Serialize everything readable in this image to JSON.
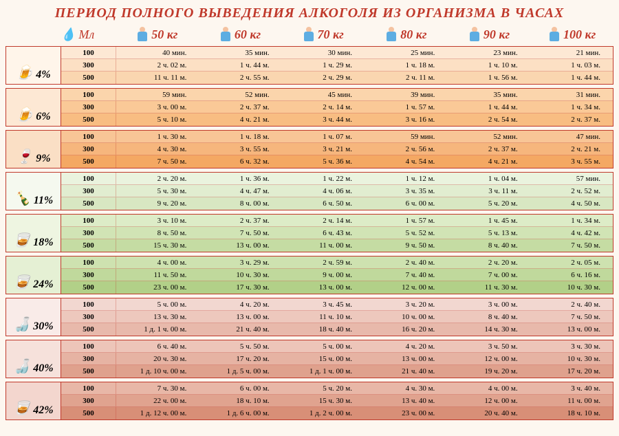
{
  "title": "ПЕРИОД ПОЛНОГО ВЫВЕДЕНИЯ АЛКОГОЛЯ ИЗ ОРГАНИЗМА В ЧАСАХ",
  "title_color": "#c0392b",
  "ml_label": "Мл",
  "ml_color": "#c0392b",
  "weights": [
    "50 кг",
    "60 кг",
    "70 кг",
    "80 кг",
    "90 кг",
    "100 кг"
  ],
  "weight_colors": [
    "#c0392b",
    "#c0392b",
    "#c0392b",
    "#c0392b",
    "#c0392b",
    "#c0392b"
  ],
  "ml_amounts": [
    "100",
    "300",
    "500"
  ],
  "drinks": [
    {
      "percent": "4%",
      "icon": "🍺",
      "label_bg": "#fff5ea",
      "row_bgs": [
        "#fde8d4",
        "#fce0c4",
        "#fad6b0"
      ],
      "rows": [
        [
          "40 мин.",
          "35 мин.",
          "30 мин.",
          "25 мин.",
          "23 мин.",
          "21 мин."
        ],
        [
          "2 ч. 02 м.",
          "1 ч. 44 м.",
          "1 ч. 29 м.",
          "1 ч. 18 м.",
          "1 ч. 10 м.",
          "1 ч. 03 м."
        ],
        [
          "11 ч. 11 м.",
          "2 ч. 55 м.",
          "2 ч. 29 м.",
          "2 ч. 11 м.",
          "1 ч. 56 м.",
          "1 ч. 44 м."
        ]
      ]
    },
    {
      "percent": "6%",
      "icon": "🍺",
      "label_bg": "#fde8d4",
      "row_bgs": [
        "#fbd5ac",
        "#fac997",
        "#f8bd82"
      ],
      "rows": [
        [
          "59 мин.",
          "52 мин.",
          "45 мин.",
          "39 мин.",
          "35 мин.",
          "31 мин."
        ],
        [
          "3 ч. 00 м.",
          "2 ч. 37 м.",
          "2 ч. 14 м.",
          "1 ч. 57 м.",
          "1 ч. 44 м.",
          "1 ч. 34 м."
        ],
        [
          "5 ч. 10 м.",
          "4 ч. 21 м.",
          "3 ч. 44 м.",
          "3 ч. 16 м.",
          "2 ч. 54 м.",
          "2 ч. 37 м."
        ]
      ]
    },
    {
      "percent": "9%",
      "icon": "🍷",
      "label_bg": "#fadfc5",
      "row_bgs": [
        "#f8c596",
        "#f6b67d",
        "#f4a863"
      ],
      "rows": [
        [
          "1 ч. 30 м.",
          "1 ч. 18 м.",
          "1 ч. 07 м.",
          "59 мин.",
          "52 мин.",
          "47 мин."
        ],
        [
          "4 ч. 30 м.",
          "3 ч. 55 м.",
          "3 ч. 21 м.",
          "2 ч. 56 м.",
          "2 ч. 37 м.",
          "2 ч. 21 м."
        ],
        [
          "7 ч. 50 м.",
          "6 ч. 32 м.",
          "5 ч. 36 м.",
          "4 ч. 54 м.",
          "4 ч. 21 м.",
          "3 ч. 55 м."
        ]
      ]
    },
    {
      "percent": "11%",
      "icon": "🍾",
      "label_bg": "#f5f9ef",
      "row_bgs": [
        "#eaf3de",
        "#e1edd0",
        "#d8e7c2"
      ],
      "rows": [
        [
          "2 ч. 20 м.",
          "1 ч. 36 м.",
          "1 ч. 22 м.",
          "1 ч. 12 м.",
          "1 ч. 04 м.",
          "57 мин."
        ],
        [
          "5 ч. 30 м.",
          "4 ч. 47 м.",
          "4 ч. 06 м.",
          "3 ч. 35 м.",
          "3 ч. 11 м.",
          "2 ч. 52 м."
        ],
        [
          "9 ч. 20 м.",
          "8 ч. 00 м.",
          "6 ч. 50 м.",
          "6 ч. 00 м.",
          "5 ч. 20 м.",
          "4 ч. 50 м."
        ]
      ]
    },
    {
      "percent": "18%",
      "icon": "🥃",
      "label_bg": "#eef5e1",
      "row_bgs": [
        "#ddecc7",
        "#d1e4b5",
        "#c5dca3"
      ],
      "rows": [
        [
          "3 ч. 10 м.",
          "2 ч. 37 м.",
          "2 ч. 14 м.",
          "1 ч. 57 м.",
          "1 ч. 45 м.",
          "1 ч. 34 м."
        ],
        [
          "8 ч. 50 м.",
          "7 ч. 50 м.",
          "6 ч. 43 м.",
          "5 ч. 52 м.",
          "5 ч. 13 м.",
          "4 ч. 42 м."
        ],
        [
          "15 ч. 30 м.",
          "13 ч. 00 м.",
          "11 ч. 00 м.",
          "9 ч. 50 м.",
          "8 ч. 40 м.",
          "7 ч. 50 м."
        ]
      ]
    },
    {
      "percent": "24%",
      "icon": "🥃",
      "label_bg": "#e5f0d4",
      "row_bgs": [
        "#cee2b0",
        "#c0d99c",
        "#b2d088"
      ],
      "rows": [
        [
          "4 ч. 00 м.",
          "3 ч. 29 м.",
          "2 ч. 59 м.",
          "2 ч. 40 м.",
          "2 ч. 20 м.",
          "2 ч. 05 м."
        ],
        [
          "11 ч. 50 м.",
          "10 ч. 30 м.",
          "9 ч. 00 м.",
          "7 ч. 40 м.",
          "7 ч. 00 м.",
          "6 ч. 16 м."
        ],
        [
          "23 ч. 00 м.",
          "17 ч. 30 м.",
          "13 ч. 00 м.",
          "12 ч. 00 м.",
          "11 ч. 30 м.",
          "10 ч. 30 м."
        ]
      ]
    },
    {
      "percent": "30%",
      "icon": "🍶",
      "label_bg": "#f9ebe8",
      "row_bgs": [
        "#f2d7d0",
        "#edc8bd",
        "#e8b9ab"
      ],
      "rows": [
        [
          "5 ч. 00 м.",
          "4 ч. 20 м.",
          "3 ч. 45 м.",
          "3 ч. 20 м.",
          "3 ч. 00 м.",
          "2 ч. 40 м."
        ],
        [
          "13 ч. 30 м.",
          "13 ч. 00 м.",
          "11 ч. 10 м.",
          "10 ч. 00 м.",
          "8 ч. 40 м.",
          "7 ч. 50 м."
        ],
        [
          "1 д. 1 ч. 00 м.",
          "21 ч. 40 м.",
          "18 ч. 40 м.",
          "16 ч. 20 м.",
          "14 ч. 30 м.",
          "13 ч. 00 м."
        ]
      ]
    },
    {
      "percent": "40%",
      "icon": "🍶",
      "label_bg": "#f6e1db",
      "row_bgs": [
        "#edc5b9",
        "#e6b3a3",
        "#dfa18d"
      ],
      "rows": [
        [
          "6 ч. 40 м.",
          "5 ч. 50 м.",
          "5 ч. 00 м.",
          "4 ч. 20 м.",
          "3 ч. 50 м.",
          "3 ч. 30 м."
        ],
        [
          "20 ч. 30 м.",
          "17 ч. 20 м.",
          "15 ч. 00 м.",
          "13 ч. 00 м.",
          "12 ч. 00 м.",
          "10 ч. 30 м."
        ],
        [
          "1 д. 10 ч. 00 м.",
          "1 д. 5 ч. 00 м.",
          "1 д. 1 ч. 00 м.",
          "21 ч. 40 м.",
          "19 ч. 20 м.",
          "17 ч. 20 м."
        ]
      ]
    },
    {
      "percent": "42%",
      "icon": "🥃",
      "label_bg": "#f3d6ce",
      "row_bgs": [
        "#e8b7a7",
        "#e0a38f",
        "#d88f77"
      ],
      "rows": [
        [
          "7 ч. 30 м.",
          "6 ч. 00 м.",
          "5 ч. 20 м.",
          "4 ч. 30 м.",
          "4 ч. 00 м.",
          "3 ч. 40 м."
        ],
        [
          "22 ч. 00 м.",
          "18 ч. 10 м.",
          "15 ч. 30 м.",
          "13 ч. 40 м.",
          "12 ч. 00 м.",
          "11 ч. 00 м."
        ],
        [
          "1 д. 12 ч. 00 м.",
          "1 д. 6 ч. 00 м.",
          "1 д. 2 ч. 00 м.",
          "23 ч. 00 м.",
          "20 ч. 40 м.",
          "18 ч. 10 м."
        ]
      ]
    }
  ]
}
